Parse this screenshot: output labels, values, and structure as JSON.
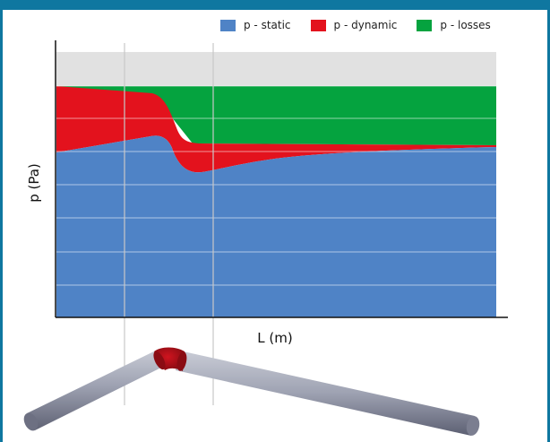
{
  "legend": {
    "items": [
      {
        "label": "p - static",
        "color": "#4f83c6"
      },
      {
        "label": "p - dynamic",
        "color": "#e3121d"
      },
      {
        "label": "p - losses",
        "color": "#05a33f"
      }
    ]
  },
  "axes": {
    "ylabel": "p (Pa)",
    "xlabel": "L (m)"
  },
  "colors": {
    "static": "#4f83c6",
    "dynamic": "#e3121d",
    "losses": "#05a33f",
    "headroom": "#e1e1e1",
    "pipe": "#8f93a4",
    "elbow": "#b0101a"
  }
}
